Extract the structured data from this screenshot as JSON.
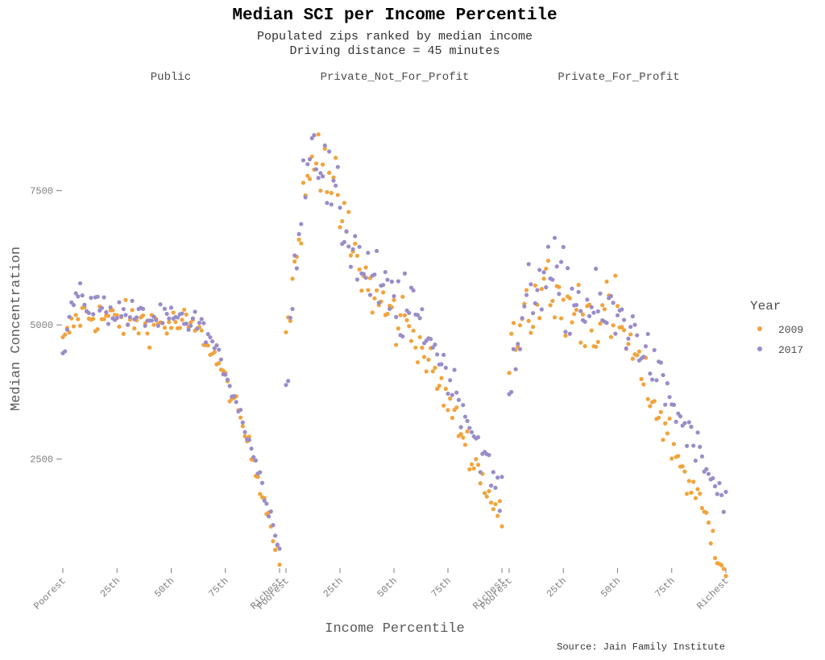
{
  "chart_data": {
    "type": "scatter",
    "title": "Median SCI per Income Percentile",
    "subtitle_lines": [
      "Populated zips ranked by median income",
      "Driving distance = 45 minutes"
    ],
    "xlabel": "Income Percentile",
    "ylabel": "Median Concentration",
    "caption": "Source: Jain Family Institute",
    "x_ticks": [
      {
        "value": 0,
        "label": "Poorest"
      },
      {
        "value": 25,
        "label": "25th"
      },
      {
        "value": 50,
        "label": "50th"
      },
      {
        "value": 75,
        "label": "75th"
      },
      {
        "value": 100,
        "label": "Richest"
      }
    ],
    "xlim": [
      0,
      100
    ],
    "y_ticks": [
      2500,
      5000,
      7500
    ],
    "ylim": [
      500,
      9400
    ],
    "grid": false,
    "legend": {
      "title": "Year",
      "placement": "right"
    },
    "series_styles": [
      {
        "name": "2009",
        "color": "#f2a33c"
      },
      {
        "name": "2017",
        "color": "#9a8cc8"
      }
    ],
    "facets": [
      {
        "name": "Public",
        "series": [
          {
            "name": "2009",
            "shape": {
              "start": 4650,
              "peak": 5200,
              "peak_x": 10,
              "plateau": 5000,
              "plateau_end": 58,
              "end": 650,
              "end_power": 1.6
            },
            "noise": 170
          },
          {
            "name": "2017",
            "shape": {
              "start": 4300,
              "peak": 5500,
              "peak_x": 6,
              "plateau": 5050,
              "plateau_end": 62,
              "end": 850,
              "end_power": 1.4
            },
            "noise": 140
          }
        ]
      },
      {
        "name": "Private_Not_For_Profit",
        "series": [
          {
            "name": "2009",
            "shape": {
              "start": 4750,
              "peak": 8300,
              "peak_x": 17,
              "plateau": 5100,
              "plateau_end": 55,
              "end": 1300,
              "end_power": 1.1
            },
            "noise": 300
          },
          {
            "name": "2017",
            "shape": {
              "start": 3700,
              "peak": 8500,
              "peak_x": 13,
              "plateau": 5300,
              "plateau_end": 58,
              "end": 1700,
              "end_power": 1.2
            },
            "noise": 330
          }
        ]
      },
      {
        "name": "Private_For_Profit",
        "series": [
          {
            "name": "2009",
            "shape": {
              "start": 4500,
              "peak": 5600,
              "peak_x": 15,
              "plateau": 5100,
              "plateau_end": 50,
              "end": 520,
              "end_power": 1.0
            },
            "noise": 380
          },
          {
            "name": "2017",
            "shape": {
              "start": 3700,
              "peak": 6000,
              "peak_x": 17,
              "plateau": 5100,
              "plateau_end": 55,
              "end": 1600,
              "end_power": 1.0
            },
            "noise": 370
          }
        ]
      }
    ]
  }
}
